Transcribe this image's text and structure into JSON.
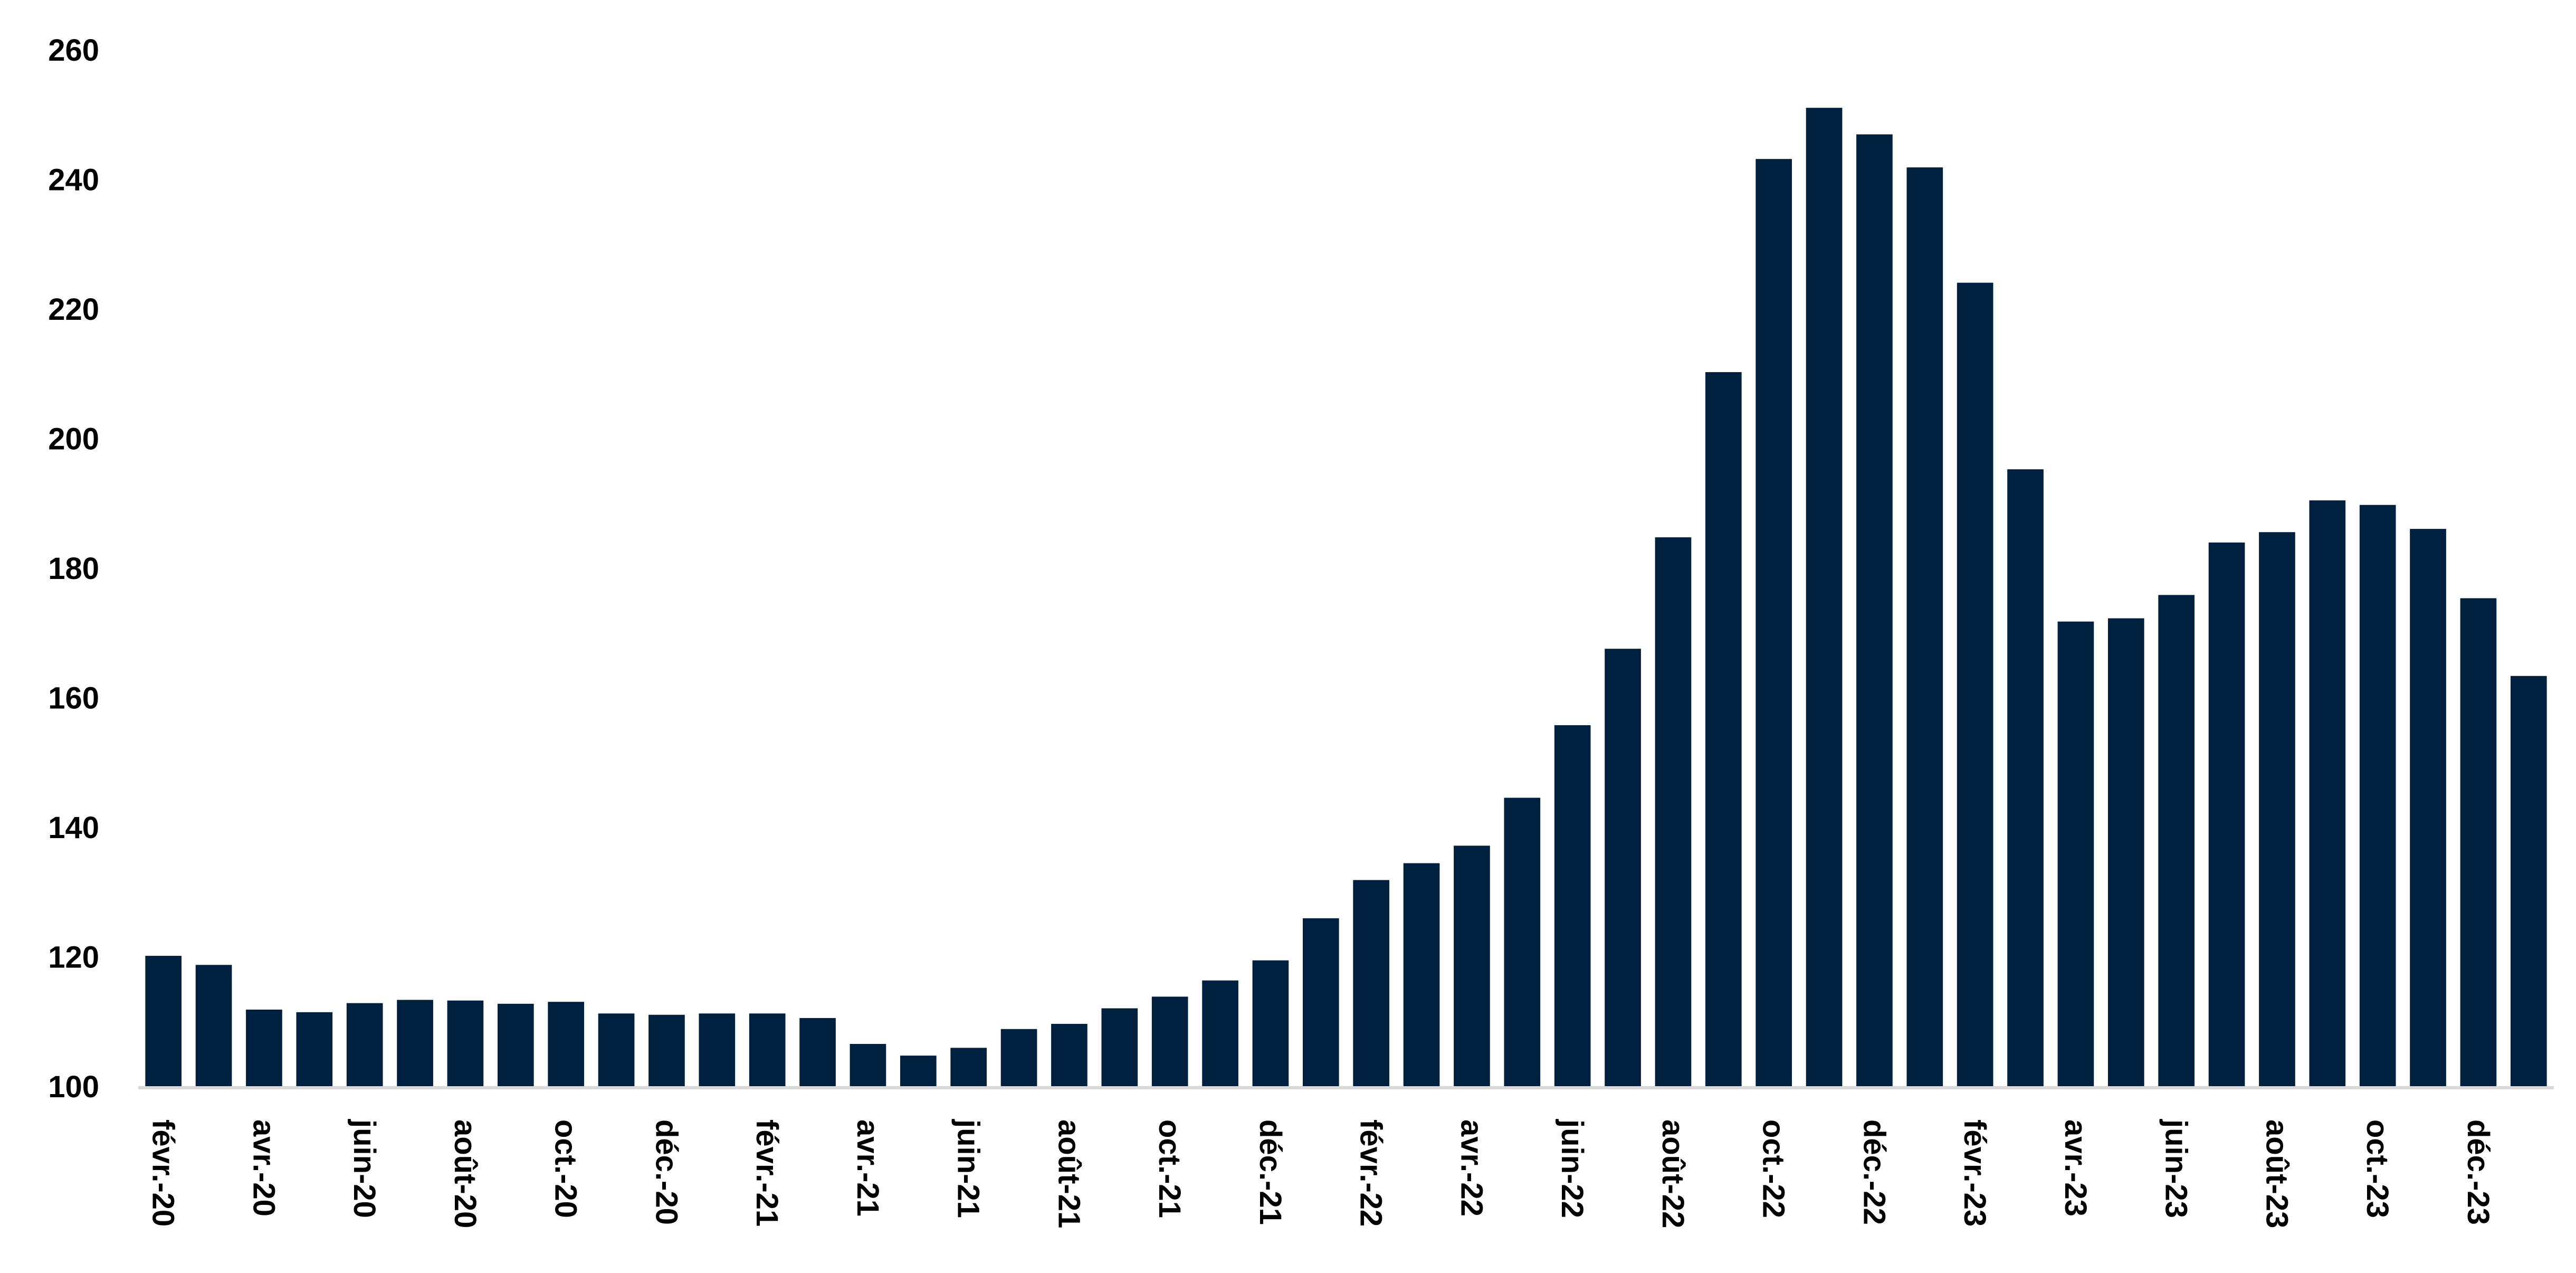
{
  "chart_data": {
    "type": "bar",
    "title": "",
    "xlabel": "",
    "ylabel": "",
    "ylim": [
      100,
      260
    ],
    "yticks": [
      100,
      120,
      140,
      160,
      180,
      200,
      220,
      240,
      260
    ],
    "grid": false,
    "legend": "none",
    "bar_color": "#002040",
    "axis_color": "#d9d9d9",
    "categories": [
      "févr.-20",
      "mars-20",
      "avr.-20",
      "mai-20",
      "juin-20",
      "juil.-20",
      "août-20",
      "sept.-20",
      "oct.-20",
      "nov.-20",
      "déc.-20",
      "janv.-21",
      "févr.-21",
      "mars-21",
      "avr.-21",
      "mai-21",
      "juin-21",
      "juil.-21",
      "août-21",
      "sept.-21",
      "oct.-21",
      "nov.-21",
      "déc.-21",
      "janv.-22",
      "févr.-22",
      "mars-22",
      "avr.-22",
      "mai-22",
      "juin-22",
      "juil.-22",
      "août-22",
      "sept.-22",
      "oct.-22",
      "nov.-22",
      "déc.-22",
      "janv.-23",
      "févr.-23",
      "mars-23",
      "avr.-23",
      "mai-23",
      "juin-23",
      "juil.-23",
      "août-23",
      "sept.-23",
      "oct.-23",
      "nov.-23",
      "déc.-23",
      "janv.-24"
    ],
    "tick_labels": [
      "févr.-20",
      "avr.-20",
      "juin-20",
      "août-20",
      "oct.-20",
      "déc.-20",
      "févr.-21",
      "avr.-21",
      "juin-21",
      "août-21",
      "oct.-21",
      "déc.-21",
      "févr.-22",
      "avr.-22",
      "juin-22",
      "août-22",
      "oct.-22",
      "déc.-22",
      "févr.-23",
      "avr.-23",
      "juin-23",
      "août-23",
      "oct.-23",
      "déc.-23"
    ],
    "values": [
      120.2,
      118.8,
      111.9,
      111.5,
      112.9,
      113.4,
      113.3,
      112.8,
      113.1,
      111.3,
      111.1,
      111.3,
      111.3,
      110.6,
      106.6,
      104.8,
      106.0,
      108.9,
      109.7,
      112.1,
      113.9,
      116.4,
      119.5,
      126.0,
      131.9,
      134.5,
      137.2,
      144.6,
      155.8,
      167.6,
      184.8,
      210.3,
      243.2,
      251.1,
      247.0,
      241.9,
      224.1,
      195.3,
      171.8,
      172.3,
      175.9,
      184.0,
      185.6,
      190.5,
      189.8,
      186.1,
      175.4,
      163.4
    ]
  }
}
